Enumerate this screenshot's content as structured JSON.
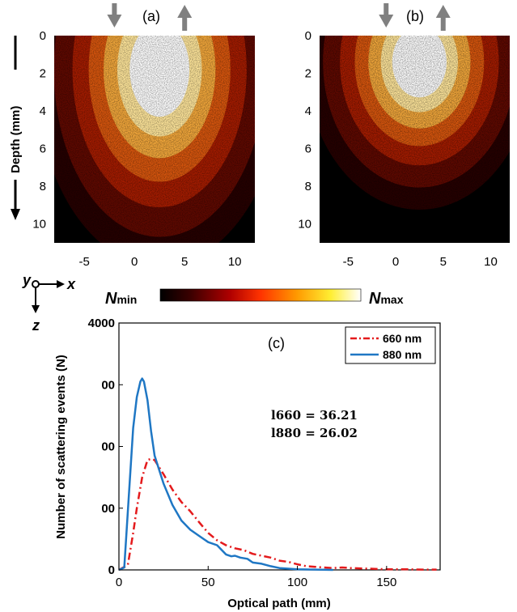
{
  "chart_data": [
    {
      "panel": "(a)",
      "type": "heatmap",
      "ylabel": "Depth (mm)",
      "xlim": [
        -8,
        12
      ],
      "ylim": [
        0,
        11
      ],
      "xticks": [
        "-5",
        "0",
        "5",
        "10"
      ],
      "yticks": [
        "0",
        "2",
        "4",
        "6",
        "8",
        "10"
      ],
      "arrows": {
        "in_x": -2,
        "out_x": 5
      },
      "glow": {
        "cx": 2.5,
        "cy": 1.8,
        "spread": 1.0
      }
    },
    {
      "panel": "(b)",
      "type": "heatmap",
      "xlim": [
        -8,
        12
      ],
      "ylim": [
        0,
        11
      ],
      "xticks": [
        "-5",
        "0",
        "5",
        "10"
      ],
      "yticks": [
        "0",
        "2",
        "4",
        "6",
        "8",
        "10"
      ],
      "arrows": {
        "in_x": -1,
        "out_x": 5
      },
      "glow": {
        "cx": 2.5,
        "cy": 1.4,
        "spread": 0.75
      }
    },
    {
      "panel": "(c)",
      "type": "line",
      "xlabel": "Optical path (mm)",
      "ylabel": "Number of scattering events (N)",
      "xlim": [
        0,
        180
      ],
      "ylim": [
        0,
        4000
      ],
      "xticks": [
        "0",
        "50",
        "100",
        "150"
      ],
      "yticks": [
        "0",
        "00",
        "00",
        "00",
        "4000"
      ],
      "annotations": [
        "l660 = 36.21",
        "l880 = 26.02"
      ],
      "series": [
        {
          "name": "660 nm",
          "color": "#e41a1c",
          "dash": "dashdot",
          "x": [
            0,
            5,
            8,
            10,
            13,
            16,
            18,
            20,
            25,
            30,
            35,
            40,
            45,
            50,
            55,
            60,
            65,
            70,
            75,
            80,
            85,
            90,
            95,
            100,
            105,
            110,
            115,
            120,
            125,
            130,
            140,
            150,
            160,
            170,
            178
          ],
          "y": [
            0,
            80,
            600,
            1000,
            1500,
            1780,
            1800,
            1780,
            1550,
            1300,
            1100,
            950,
            770,
            600,
            480,
            400,
            350,
            320,
            260,
            230,
            200,
            150,
            130,
            90,
            60,
            50,
            40,
            30,
            40,
            30,
            20,
            10,
            10,
            5,
            5
          ]
        },
        {
          "name": "880 nm",
          "color": "#1f77c4",
          "dash": "solid",
          "x": [
            0,
            3,
            6,
            8,
            10,
            12,
            13,
            14,
            16,
            18,
            20,
            25,
            30,
            35,
            40,
            45,
            50,
            55,
            60,
            63,
            65,
            68,
            72,
            75,
            80,
            85,
            90,
            95,
            100,
            110,
            120
          ],
          "y": [
            0,
            40,
            1400,
            2300,
            2800,
            3050,
            3100,
            3050,
            2750,
            2250,
            1850,
            1400,
            1050,
            800,
            650,
            550,
            450,
            400,
            250,
            220,
            230,
            200,
            180,
            120,
            100,
            60,
            30,
            20,
            10,
            5,
            0
          ]
        }
      ]
    }
  ],
  "colorbar": {
    "min_label": "N",
    "min_sub": "min",
    "max_label": "N",
    "max_sub": "max"
  },
  "axes_glyph": {
    "y": "y",
    "x": "x",
    "z": "z"
  },
  "colors": {
    "bar_stops": [
      "#000000",
      "#3a0000",
      "#b00000",
      "#ff3300",
      "#ff9900",
      "#ffee33",
      "#ffffff"
    ]
  }
}
